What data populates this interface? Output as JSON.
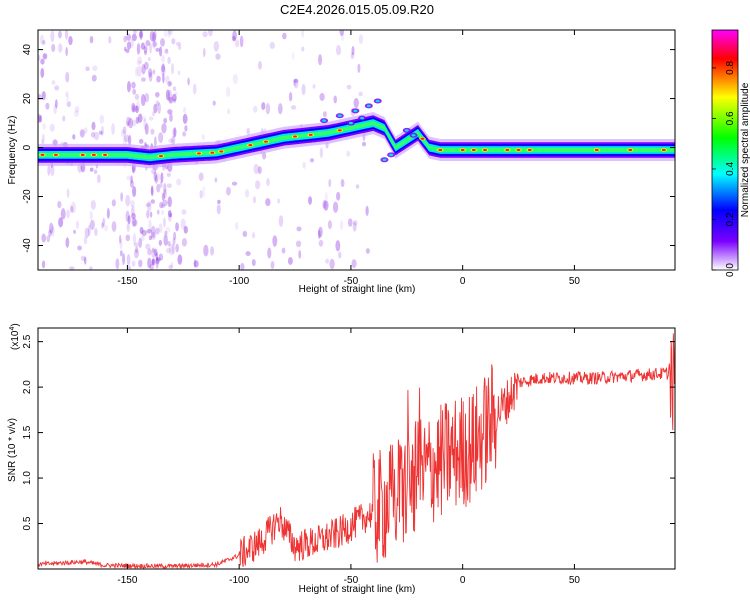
{
  "title": "C2E4.2026.015.05.09.R20",
  "spectrogram": {
    "type": "heatmap",
    "xlabel": "Height of straight line (km)",
    "ylabel": "Frequency (Hz)",
    "xlim": [
      -190,
      95
    ],
    "ylim": [
      -50,
      48
    ],
    "xticks": [
      -150,
      -100,
      -50,
      0,
      50
    ],
    "yticks": [
      -40,
      -20,
      0,
      20,
      40
    ],
    "xtick_labels": [
      "-150",
      "-100",
      "-50",
      "0",
      "50"
    ],
    "ytick_labels": [
      "-40",
      "-20",
      "0",
      "20",
      "40"
    ],
    "ridge": [
      {
        "x": -190,
        "y": -3
      },
      {
        "x": -150,
        "y": -3
      },
      {
        "x": -140,
        "y": -4
      },
      {
        "x": -130,
        "y": -3
      },
      {
        "x": -110,
        "y": -2
      },
      {
        "x": -100,
        "y": 0
      },
      {
        "x": -90,
        "y": 2
      },
      {
        "x": -80,
        "y": 4
      },
      {
        "x": -70,
        "y": 5
      },
      {
        "x": -60,
        "y": 6
      },
      {
        "x": -50,
        "y": 8
      },
      {
        "x": -40,
        "y": 10
      },
      {
        "x": -35,
        "y": 8
      },
      {
        "x": -30,
        "y": 0
      },
      {
        "x": -25,
        "y": 3
      },
      {
        "x": -20,
        "y": 6
      },
      {
        "x": -15,
        "y": 0
      },
      {
        "x": -10,
        "y": -1
      },
      {
        "x": 0,
        "y": -1
      },
      {
        "x": 20,
        "y": -1
      },
      {
        "x": 50,
        "y": -1
      },
      {
        "x": 95,
        "y": -1
      }
    ],
    "colorbar": {
      "label": "Normalized spectral amplitude",
      "range": [
        0,
        0.95
      ],
      "ticks": [
        0.0,
        0.2,
        0.4,
        0.6,
        0.8
      ],
      "tick_labels": [
        "0.0",
        "0.2",
        "0.4",
        "0.6",
        "0.8"
      ],
      "colors": [
        "#ffffff",
        "#7a00ff",
        "#0000ff",
        "#00ffff",
        "#00ff00",
        "#ffff00",
        "#ff0000",
        "#ff00ff"
      ]
    }
  },
  "snr": {
    "type": "line",
    "xlabel": "Height of straight line (km)",
    "ylabel": "SNR (10 * v/v)",
    "scale_label": "(x10",
    "scale_exponent": "4",
    "scale_close": ")",
    "xlim": [
      -190,
      95
    ],
    "ylim": [
      0,
      26500
    ],
    "xticks": [
      -150,
      -100,
      -50,
      0,
      50
    ],
    "yticks": [
      5000,
      10000,
      15000,
      20000,
      25000
    ],
    "xtick_labels": [
      "-150",
      "-100",
      "-50",
      "0",
      "50"
    ],
    "ytick_labels": [
      "0.5",
      "1.0",
      "1.5",
      "2.0",
      "2.5"
    ],
    "line_color": "#ee3333",
    "baseline": [
      {
        "x": -190,
        "y": 500
      },
      {
        "x": -170,
        "y": 800
      },
      {
        "x": -160,
        "y": 400
      },
      {
        "x": -130,
        "y": 300
      },
      {
        "x": -110,
        "y": 500
      },
      {
        "x": -100,
        "y": 1500
      },
      {
        "x": -90,
        "y": 3000
      },
      {
        "x": -82,
        "y": 5500
      },
      {
        "x": -75,
        "y": 2500
      },
      {
        "x": -65,
        "y": 3000
      },
      {
        "x": -55,
        "y": 4000
      },
      {
        "x": -45,
        "y": 5500
      },
      {
        "x": -35,
        "y": 7000
      },
      {
        "x": -25,
        "y": 9000
      },
      {
        "x": -15,
        "y": 11000
      },
      {
        "x": -5,
        "y": 12500
      },
      {
        "x": 5,
        "y": 13500
      },
      {
        "x": 15,
        "y": 17000
      },
      {
        "x": 20,
        "y": 18500
      },
      {
        "x": 25,
        "y": 20500
      },
      {
        "x": 35,
        "y": 21000
      },
      {
        "x": 60,
        "y": 21000
      },
      {
        "x": 90,
        "y": 21500
      },
      {
        "x": 95,
        "y": 21500
      }
    ]
  }
}
